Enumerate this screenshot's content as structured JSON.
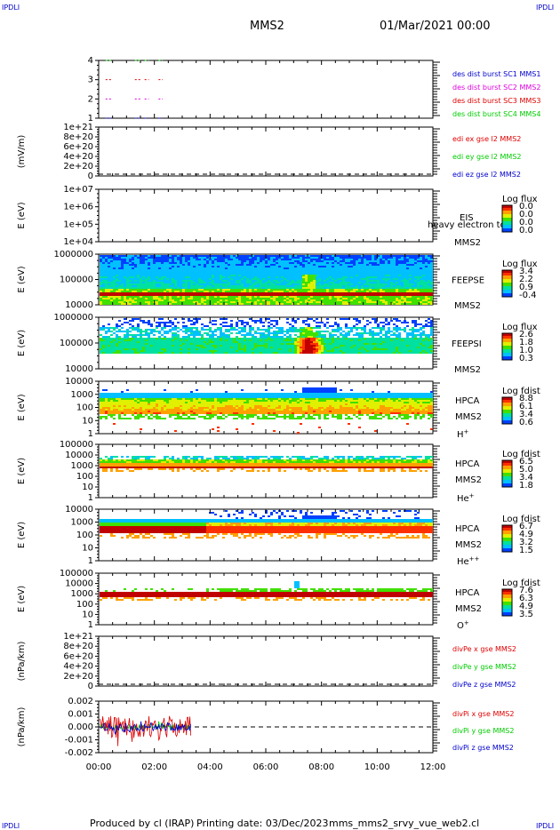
{
  "header": {
    "corner_tl": "IPDLI",
    "corner_tr": "IPDLI",
    "corner_bl": "IPDLI",
    "corner_br": "IPDLI",
    "mission": "MMS2",
    "datetime": "01/Mar/2021 00:00"
  },
  "footer": {
    "produced_by": "Produced by cl (IRAP)",
    "printing_date": "Printing date: 03/Dec/2023",
    "script_name": "mms_mms2_srvy_vue_web2.cl"
  },
  "colors": {
    "red": "#e00000",
    "green": "#00cc00",
    "blue": "#0000cc",
    "magenta": "#dd00dd"
  },
  "chart_data": [
    {
      "type": "scatter",
      "name": "burst_availability",
      "ylabel": "",
      "yticks": [
        "4",
        "3",
        "2",
        "1"
      ],
      "legend": [
        {
          "text": "des dist burst SC1 MMS1",
          "color": "#0000cc"
        },
        {
          "text": "des dist burst SC2 MMS2",
          "color": "#dd00dd"
        },
        {
          "text": "des dist burst SC3 MMS3",
          "color": "#e00000"
        },
        {
          "text": "des dist burst SC4 MMS4",
          "color": "#00cc00"
        }
      ]
    },
    {
      "type": "line",
      "name": "edi_efield",
      "ylabel": "(mV/m)",
      "yticks": [
        "1e+21",
        "8e+20",
        "6e+20",
        "4e+20",
        "2e+20",
        "0"
      ],
      "legend": [
        {
          "text": "edi ex gse l2 MMS2",
          "color": "#e00000"
        },
        {
          "text": "edi ey gse l2 MMS2",
          "color": "#00cc00"
        },
        {
          "text": "edi ez gse l2 MMS2",
          "color": "#0000cc"
        }
      ]
    },
    {
      "type": "heatmap",
      "name": "eis",
      "ylabel": "E (eV)",
      "yticks": [
        "1e+07",
        "1e+06",
        "1e+05",
        "1e+04"
      ],
      "labels": [
        "EIS",
        "heavy electron tof",
        "MMS2"
      ],
      "cbar_title": "Log flux",
      "cbar_ticks": [
        "0.0",
        "0.0",
        "0.0",
        "0.0"
      ]
    },
    {
      "type": "heatmap",
      "name": "feeps_e",
      "ylabel": "E (eV)",
      "yticks": [
        "1000000",
        "100000",
        "10000"
      ],
      "labels": [
        "FEEPSE",
        "MMS2"
      ],
      "cbar_title": "Log flux",
      "cbar_ticks": [
        "3.4",
        "2.2",
        "0.9",
        "-0.4"
      ]
    },
    {
      "type": "heatmap",
      "name": "feeps_i",
      "ylabel": "E (eV)",
      "yticks": [
        "1000000",
        "100000",
        "10000"
      ],
      "labels": [
        "FEEPSI",
        "MMS2"
      ],
      "cbar_title": "Log flux",
      "cbar_ticks": [
        "2.6",
        "1.8",
        "1.0",
        "0.3"
      ]
    },
    {
      "type": "heatmap",
      "name": "hpca_h",
      "ylabel": "E (eV)",
      "yticks": [
        "10000",
        "1000",
        "100",
        "10",
        "1"
      ],
      "labels": [
        "HPCA",
        "MMS2",
        "H+"
      ],
      "cbar_title": "Log fdist",
      "cbar_ticks": [
        "8.8",
        "6.1",
        "3.4",
        "0.6"
      ]
    },
    {
      "type": "heatmap",
      "name": "hpca_he",
      "ylabel": "E (eV)",
      "yticks": [
        "100000",
        "10000",
        "1000",
        "100",
        "10",
        "1"
      ],
      "labels": [
        "HPCA",
        "MMS2",
        "He+"
      ],
      "cbar_title": "Log fdist",
      "cbar_ticks": [
        "6.5",
        "5.0",
        "3.4",
        "1.8"
      ]
    },
    {
      "type": "heatmap",
      "name": "hpca_hepp",
      "ylabel": "E (eV)",
      "yticks": [
        "10000",
        "1000",
        "100",
        "10",
        "1"
      ],
      "labels": [
        "HPCA",
        "MMS2",
        "He++"
      ],
      "cbar_title": "Log fdist",
      "cbar_ticks": [
        "6.7",
        "4.9",
        "3.2",
        "1.5"
      ]
    },
    {
      "type": "heatmap",
      "name": "hpca_o",
      "ylabel": "E (eV)",
      "yticks": [
        "100000",
        "10000",
        "1000",
        "100",
        "10",
        "1"
      ],
      "labels": [
        "HPCA",
        "MMS2",
        "O+"
      ],
      "cbar_title": "Log fdist",
      "cbar_ticks": [
        "7.6",
        "6.3",
        "4.9",
        "3.5"
      ]
    },
    {
      "type": "line",
      "name": "divpe",
      "ylabel": "(nPa/km)",
      "yticks": [
        "1e+21",
        "8e+20",
        "6e+20",
        "4e+20",
        "2e+20",
        "0"
      ],
      "legend": [
        {
          "text": "divPe x gse MMS2",
          "color": "#e00000"
        },
        {
          "text": "divPe y gse MMS2",
          "color": "#00cc00"
        },
        {
          "text": "divPe z gse MMS2",
          "color": "#0000cc"
        }
      ]
    },
    {
      "type": "line",
      "name": "divpi",
      "ylabel": "(nPa/km)",
      "yticks": [
        "0.002",
        "0.001",
        "0.000",
        "-0.001",
        "-0.002"
      ],
      "legend": [
        {
          "text": "divPi x gse MMS2",
          "color": "#e00000"
        },
        {
          "text": "divPi y gse MMS2",
          "color": "#00cc00"
        },
        {
          "text": "divPi z gse MMS2",
          "color": "#0000cc"
        }
      ],
      "x_data_end": "03:20"
    }
  ],
  "xaxis": {
    "ticks": [
      "00:00",
      "02:00",
      "04:00",
      "06:00",
      "08:00",
      "10:00",
      "12:00"
    ]
  }
}
